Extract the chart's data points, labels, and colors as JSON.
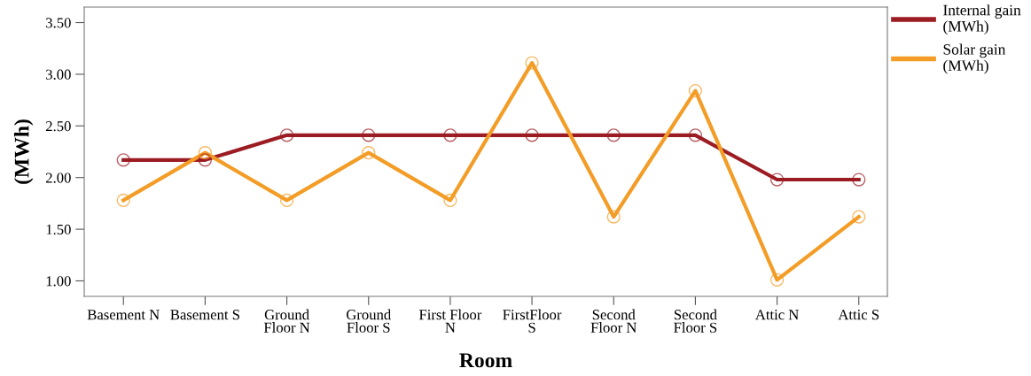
{
  "chart_data": {
    "type": "line",
    "xlabel": "Room",
    "ylabel": "(MWh)",
    "categories": [
      "Basement N",
      "Basement S",
      "Ground\nFloor N",
      "Ground\nFloor S",
      "First Floor\nN",
      "FirstFloor\nS",
      "Second\nFloor N",
      "Second\nFloor S",
      "Attic N",
      "Attic S"
    ],
    "series": [
      {
        "name": "Internal gain\n(MWh)",
        "color": "#9b1c22",
        "values": [
          2.17,
          2.17,
          2.41,
          2.41,
          2.41,
          2.41,
          2.41,
          2.41,
          1.98,
          1.98
        ]
      },
      {
        "name": "Solar gain\n(MWh)",
        "color": "#f39c26",
        "values": [
          1.78,
          2.24,
          1.78,
          2.24,
          1.78,
          3.11,
          1.62,
          2.84,
          1.01,
          1.62
        ]
      }
    ],
    "ylim": [
      0.85,
      3.65
    ],
    "yticks": [
      {
        "value": 1.0,
        "label": "1.00"
      },
      {
        "value": 1.5,
        "label": "1.50"
      },
      {
        "value": 2.0,
        "label": "2.00"
      },
      {
        "value": 2.5,
        "label": "2.50"
      },
      {
        "value": 3.0,
        "label": "3.00"
      },
      {
        "value": 3.5,
        "label": "3.50"
      }
    ],
    "grid": false,
    "legend": "top right",
    "marker": "circle",
    "line_style": "solid"
  }
}
